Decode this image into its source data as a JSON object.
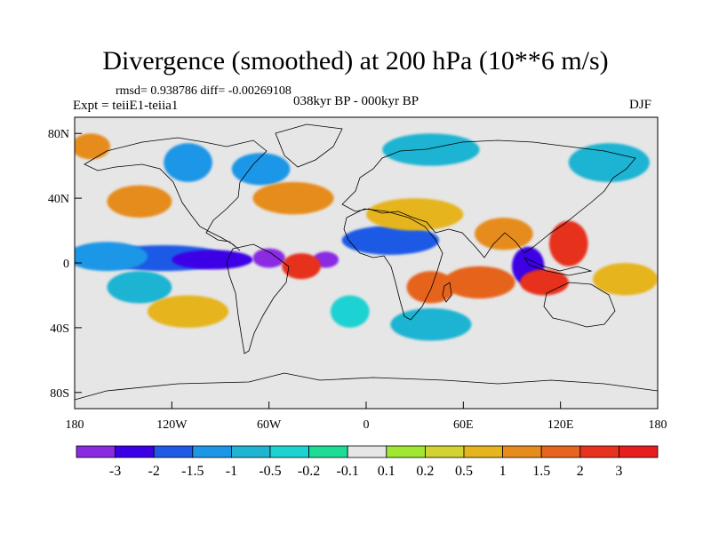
{
  "title": "Divergence (smoothed) at 200 hPa (10**6 m/s)",
  "stats": "rmsd= 0.938786 diff= -0.00269108",
  "experiment": "Expt = teiiE1-teiia1",
  "period": "038kyr BP - 000kyr BP",
  "season": "DJF",
  "map": {
    "projection": "cylindrical equidistant",
    "lon_range": [
      -180,
      180
    ],
    "lat_range": [
      -90,
      90
    ],
    "background_color": "#e6e6e6",
    "coastline_color": "#000000"
  },
  "axes": {
    "x_ticks": [
      {
        "value": -180,
        "label": "180"
      },
      {
        "value": -120,
        "label": "120W"
      },
      {
        "value": -60,
        "label": "60W"
      },
      {
        "value": 0,
        "label": "0"
      },
      {
        "value": 60,
        "label": "60E"
      },
      {
        "value": 120,
        "label": "120E"
      },
      {
        "value": 180,
        "label": "180"
      }
    ],
    "y_ticks": [
      {
        "value": 80,
        "label": "80N"
      },
      {
        "value": 40,
        "label": "40N"
      },
      {
        "value": 0,
        "label": "0"
      },
      {
        "value": -40,
        "label": "40S"
      },
      {
        "value": -80,
        "label": "80S"
      }
    ]
  },
  "colorbar": {
    "colors": [
      "#8a2be2",
      "#3c00e6",
      "#1e5ae6",
      "#1e96e6",
      "#1eb4d2",
      "#1ed2d2",
      "#1edc96",
      "#e6e6e6",
      "#a0e632",
      "#d2d232",
      "#e6b41e",
      "#e68c1e",
      "#e6641e",
      "#e6321e",
      "#e61e1e"
    ],
    "labels": [
      "-3",
      "-2",
      "-1.5",
      "-1",
      "-0.5",
      "-0.2",
      "-0.1",
      "0.1",
      "0.2",
      "0.5",
      "1",
      "1.5",
      "2",
      "3"
    ]
  },
  "field_blobs": [
    {
      "lon": -150,
      "lat": 2,
      "rlon": 28,
      "rlat": 5,
      "level": 0
    },
    {
      "lon": -125,
      "lat": 3,
      "rlon": 40,
      "rlat": 8,
      "level": 2
    },
    {
      "lon": -160,
      "lat": 4,
      "rlon": 25,
      "rlat": 9,
      "level": 3
    },
    {
      "lon": -95,
      "lat": 2,
      "rlon": 25,
      "rlat": 6,
      "level": 1
    },
    {
      "lon": -60,
      "lat": 3,
      "rlon": 10,
      "rlat": 6,
      "level": 0
    },
    {
      "lon": -25,
      "lat": 2,
      "rlon": 8,
      "rlat": 5,
      "level": 0
    },
    {
      "lon": 15,
      "lat": 14,
      "rlon": 30,
      "rlat": 9,
      "level": 2
    },
    {
      "lon": 100,
      "lat": -2,
      "rlon": 10,
      "rlat": 12,
      "level": 1
    },
    {
      "lon": -110,
      "lat": 62,
      "rlon": 15,
      "rlat": 12,
      "level": 3
    },
    {
      "lon": -65,
      "lat": 58,
      "rlon": 18,
      "rlat": 10,
      "level": 3
    },
    {
      "lon": 40,
      "lat": 70,
      "rlon": 30,
      "rlat": 10,
      "level": 4
    },
    {
      "lon": 150,
      "lat": 62,
      "rlon": 25,
      "rlat": 12,
      "level": 4
    },
    {
      "lon": -140,
      "lat": -15,
      "rlon": 20,
      "rlat": 10,
      "level": 4
    },
    {
      "lon": 40,
      "lat": -38,
      "rlon": 25,
      "rlat": 10,
      "level": 4
    },
    {
      "lon": -10,
      "lat": -30,
      "rlon": 12,
      "rlat": 10,
      "level": 5
    },
    {
      "lon": -140,
      "lat": 38,
      "rlon": 20,
      "rlat": 10,
      "level": 11
    },
    {
      "lon": -45,
      "lat": 40,
      "rlon": 25,
      "rlat": 10,
      "level": 11
    },
    {
      "lon": -110,
      "lat": -30,
      "rlon": 25,
      "rlat": 10,
      "level": 10
    },
    {
      "lon": -40,
      "lat": -2,
      "rlon": 12,
      "rlat": 8,
      "level": 13
    },
    {
      "lon": 40,
      "lat": -15,
      "rlon": 15,
      "rlat": 10,
      "level": 12
    },
    {
      "lon": 70,
      "lat": -12,
      "rlon": 22,
      "rlat": 10,
      "level": 12
    },
    {
      "lon": 110,
      "lat": -12,
      "rlon": 15,
      "rlat": 8,
      "level": 13
    },
    {
      "lon": 125,
      "lat": 12,
      "rlon": 12,
      "rlat": 14,
      "level": 13
    },
    {
      "lon": 85,
      "lat": 18,
      "rlon": 18,
      "rlat": 10,
      "level": 11
    },
    {
      "lon": 30,
      "lat": 30,
      "rlon": 30,
      "rlat": 10,
      "level": 10
    },
    {
      "lon": 160,
      "lat": -10,
      "rlon": 20,
      "rlat": 10,
      "level": 10
    },
    {
      "lon": -170,
      "lat": 72,
      "rlon": 12,
      "rlat": 8,
      "level": 11
    }
  ]
}
